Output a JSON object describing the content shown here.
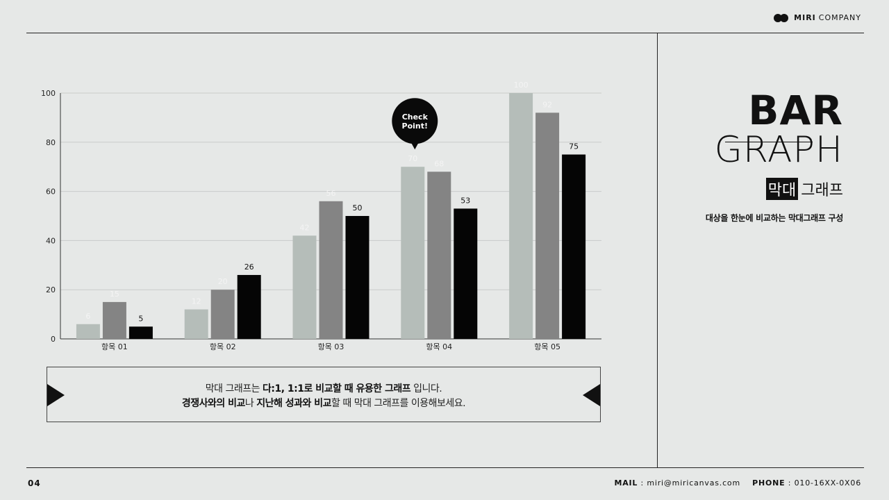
{
  "brand": {
    "bold": "MIRI",
    "name": "COMPANY"
  },
  "title": {
    "line1": "BAR",
    "line2": "GRAPH",
    "sub_highlight": "막대",
    "sub_rest": "그래프",
    "description": "대상을 한눈에 비교하는 막대그래프 구성"
  },
  "callout": {
    "line1": [
      {
        "text": "막대 그래프는 ",
        "bold": false
      },
      {
        "text": "다:1, 1:1로 비교할 때 유용한 그래프",
        "bold": true
      },
      {
        "text": " 입니다.",
        "bold": false
      }
    ],
    "line2": [
      {
        "text": "경쟁사와의 비교",
        "bold": true
      },
      {
        "text": "나 ",
        "bold": false
      },
      {
        "text": "지난해 성과와 비교",
        "bold": true
      },
      {
        "text": "할 때 막대 그래프를 이용해보세요.",
        "bold": false
      }
    ]
  },
  "footer": {
    "page": "04",
    "mail_label": "MAIL",
    "mail": "miri@miricanvas.com",
    "phone_label": "PHONE",
    "phone": "010-16XX-0X06"
  },
  "colors": {
    "series1": "#b5bdb9",
    "series2": "#848484",
    "series3": "#050505",
    "grid": "#c9cbca",
    "axis": "#333333"
  },
  "chart_data": {
    "type": "bar",
    "categories": [
      "항목 01",
      "항목 02",
      "항목 03",
      "항목 04",
      "항목 05"
    ],
    "series": [
      {
        "values": [
          6,
          12,
          42,
          70,
          100
        ]
      },
      {
        "values": [
          15,
          20,
          56,
          68,
          92
        ]
      },
      {
        "values": [
          5,
          26,
          50,
          53,
          75
        ]
      }
    ],
    "ylim": [
      0,
      100
    ],
    "yticks": [
      0,
      20,
      40,
      60,
      80,
      100
    ],
    "grid": true,
    "annotation": {
      "text_line1": "Check",
      "text_line2": "Point!",
      "category_index": 3
    }
  }
}
